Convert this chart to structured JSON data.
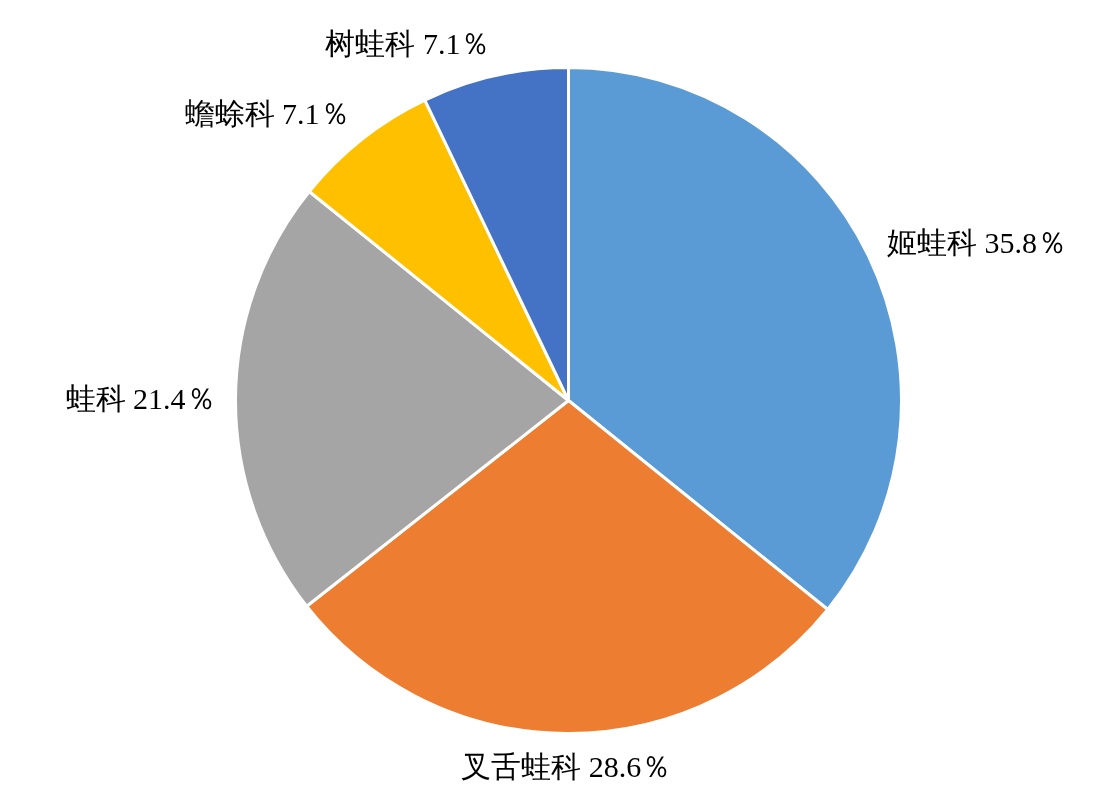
{
  "chart_data": {
    "type": "pie",
    "categories": [
      "姬蛙科",
      "叉舌蛙科",
      "蛙科",
      "蟾蜍科",
      "树蛙科"
    ],
    "values": [
      35.8,
      28.6,
      21.4,
      7.1,
      7.1
    ],
    "colors": [
      "#5b9bd5",
      "#ed7d31",
      "#a5a5a5",
      "#ffc000",
      "#4472c4"
    ],
    "value_labels": [
      "35.8％",
      "28.6％",
      "21.4％",
      "7.1％",
      "7.1％"
    ]
  }
}
